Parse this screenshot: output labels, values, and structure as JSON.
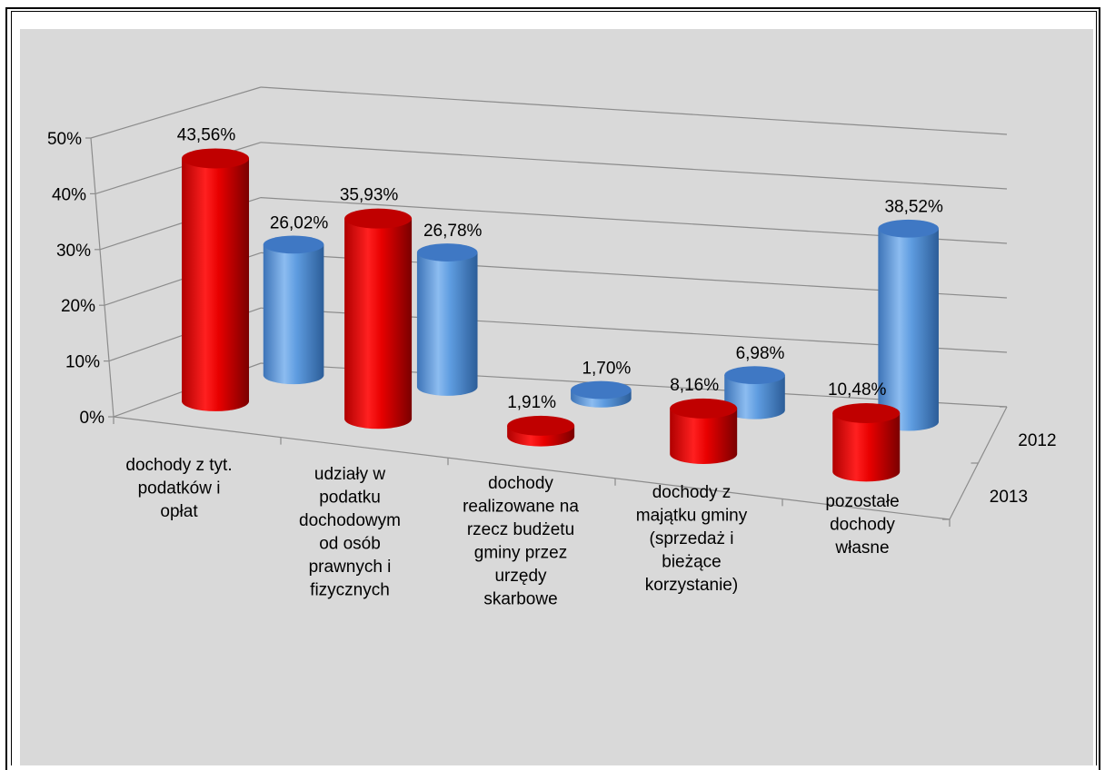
{
  "chart_data": {
    "type": "bar",
    "style": "3d-cylinder",
    "categories": [
      "dochody z tyt. podatków i opłat",
      "udziały w podatku dochodowym od osób prawnych i fizycznych",
      "dochody realizowane na rzecz budżetu gminy przez urzędy skarbowe",
      "dochody z majątku gminy (sprzedaż i bieżące korzystanie)",
      "pozostałe dochody własne"
    ],
    "category_lines": [
      [
        "dochody z tyt.",
        "podatków i",
        "opłat"
      ],
      [
        "udziały w",
        "podatku",
        "dochodowym",
        "od osób",
        "prawnych i",
        "fizycznych"
      ],
      [
        "dochody",
        "realizowane na",
        "rzecz budżetu",
        "gminy przez",
        "urzędy",
        "skarbowe"
      ],
      [
        "dochody z",
        "majątku gminy",
        "(sprzedaż i",
        "bieżące",
        "korzystanie)"
      ],
      [
        "pozostałe",
        "dochody",
        "własne"
      ]
    ],
    "series": [
      {
        "name": "2013",
        "values": [
          43.56,
          35.93,
          1.91,
          8.16,
          10.48
        ],
        "labels": [
          "43,56%",
          "35,93%",
          "1,91%",
          "8,16%",
          "10,48%"
        ],
        "color": "#e00000"
      },
      {
        "name": "2012",
        "values": [
          26.02,
          26.78,
          1.7,
          6.98,
          38.52
        ],
        "labels": [
          "26,02%",
          "26,78%",
          "1,70%",
          "6,98%",
          "38,52%"
        ],
        "color": "#4f8fd6"
      }
    ],
    "y_ticks": [
      "0%",
      "10%",
      "20%",
      "30%",
      "40%",
      "50%"
    ],
    "ylim": [
      0,
      50
    ],
    "grid": true,
    "legend": "depth-axis-right"
  }
}
